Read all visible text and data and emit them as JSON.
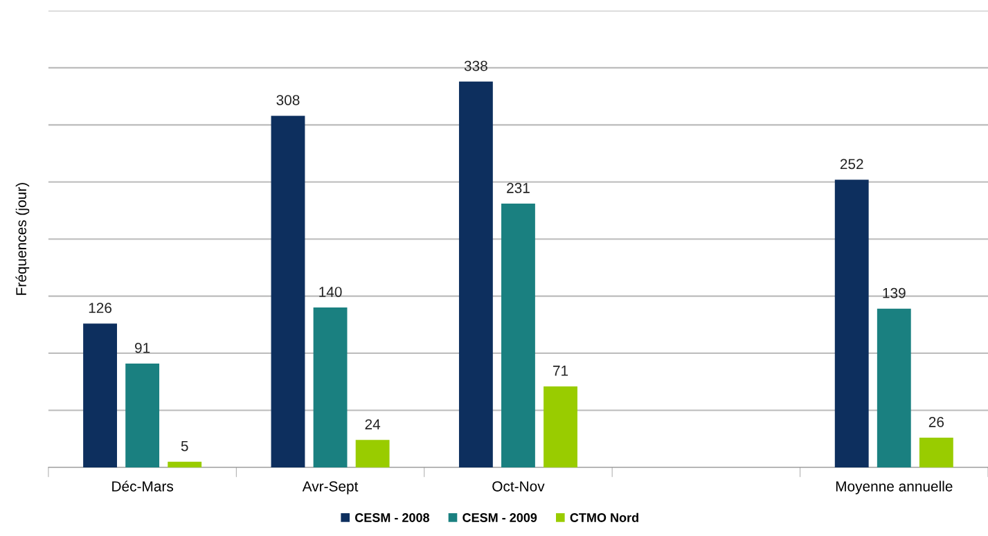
{
  "chart_data": {
    "type": "bar",
    "ylabel": "Fréquences (jour)",
    "categories": [
      "Déc-Mars",
      "Avr-Sept",
      "Oct-Nov",
      null,
      "Moyenne annuelle"
    ],
    "series": [
      {
        "name": "CESM - 2008",
        "color": "#0d2f5e",
        "values": [
          126,
          308,
          338,
          null,
          252
        ]
      },
      {
        "name": "CESM - 2009",
        "color": "#1a8080",
        "values": [
          91,
          140,
          231,
          null,
          139
        ]
      },
      {
        "name": "CTMO Nord",
        "color": "#99cc00",
        "values": [
          5,
          24,
          71,
          null,
          26
        ]
      }
    ],
    "ylim": [
      0,
      400
    ],
    "yticks": [
      {
        "value": 0,
        "label": null
      },
      {
        "value": 50,
        "label": null
      },
      {
        "value": 100,
        "label": null
      },
      {
        "value": 150,
        "label": null
      },
      {
        "value": 200,
        "label": null
      },
      {
        "value": 250,
        "label": null
      },
      {
        "value": 300,
        "label": null
      },
      {
        "value": 350,
        "label": null
      },
      {
        "value": 400,
        "label": null
      }
    ],
    "grid": "y",
    "legend": "bottom",
    "data_labels": true,
    "tick_labels": "x"
  }
}
